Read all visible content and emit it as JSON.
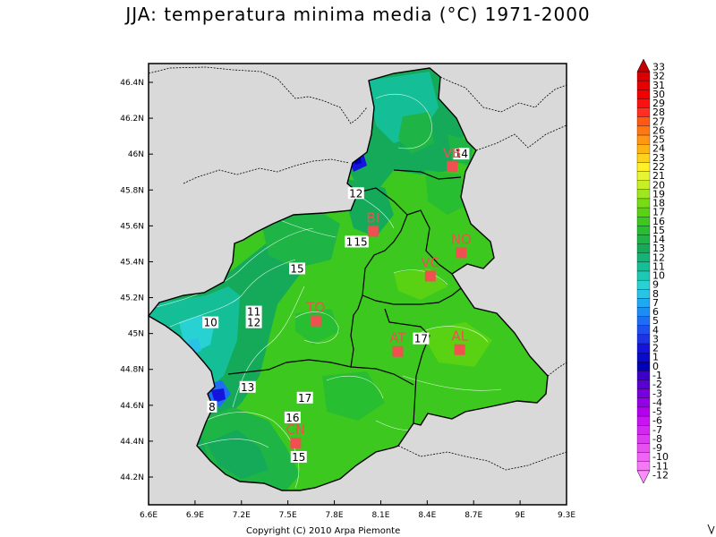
{
  "title": "JJA: temperatura minima media (°C) 1971-2000",
  "copyright": "Copyright (C) 2010 Arpa Piemonte",
  "map": {
    "lon_ticks": [
      "6.6E",
      "6.9E",
      "7.2E",
      "7.5E",
      "7.8E",
      "8.1E",
      "8.4E",
      "8.7E",
      "9E",
      "9.3E"
    ],
    "lat_ticks": [
      "46.4N",
      "46.2N",
      "46N",
      "45.8N",
      "45.6N",
      "45.4N",
      "45.2N",
      "45N",
      "44.8N",
      "44.6N",
      "44.4N",
      "44.2N"
    ],
    "cities": [
      {
        "code": "VB",
        "lon": 8.56,
        "lat": 45.93
      },
      {
        "code": "BI",
        "lon": 8.05,
        "lat": 45.57
      },
      {
        "code": "NO",
        "lon": 8.62,
        "lat": 45.45
      },
      {
        "code": "VC",
        "lon": 8.42,
        "lat": 45.32
      },
      {
        "code": "TO",
        "lon": 7.68,
        "lat": 45.07
      },
      {
        "code": "AT",
        "lon": 8.21,
        "lat": 44.9
      },
      {
        "code": "AL",
        "lon": 8.61,
        "lat": 44.91
      },
      {
        "code": "CN",
        "lon": 7.55,
        "lat": 44.39
      }
    ],
    "contour_labels": [
      {
        "text": "14",
        "lon": 8.62,
        "lat": 46.0
      },
      {
        "text": "12",
        "lon": 7.94,
        "lat": 45.78
      },
      {
        "text": "14",
        "lon": 7.92,
        "lat": 45.51
      },
      {
        "text": "15",
        "lon": 7.97,
        "lat": 45.51
      },
      {
        "text": "15",
        "lon": 7.56,
        "lat": 45.36
      },
      {
        "text": "10",
        "lon": 7.0,
        "lat": 45.06
      },
      {
        "text": "11",
        "lon": 7.28,
        "lat": 45.12
      },
      {
        "text": "12",
        "lon": 7.28,
        "lat": 45.06
      },
      {
        "text": "17",
        "lon": 8.36,
        "lat": 44.97
      },
      {
        "text": "13",
        "lon": 7.24,
        "lat": 44.7
      },
      {
        "text": "8",
        "lon": 7.01,
        "lat": 44.59
      },
      {
        "text": "17",
        "lon": 7.61,
        "lat": 44.64
      },
      {
        "text": "16",
        "lon": 7.53,
        "lat": 44.53
      },
      {
        "text": "15",
        "lon": 7.57,
        "lat": 44.31
      }
    ]
  },
  "colorbar": {
    "labels": [
      "33",
      "32",
      "31",
      "30",
      "29",
      "28",
      "27",
      "26",
      "25",
      "24",
      "23",
      "22",
      "21",
      "20",
      "19",
      "18",
      "17",
      "16",
      "15",
      "14",
      "13",
      "12",
      "11",
      "10",
      "9",
      "8",
      "7",
      "6",
      "5",
      "4",
      "3",
      "2",
      "1",
      "0",
      "-1",
      "-2",
      "-3",
      "-4",
      "-5",
      "-6",
      "-7",
      "-8",
      "-9",
      "-10",
      "-11",
      "-12"
    ],
    "colors": {
      "33": "#c00000",
      "32": "#d80000",
      "31": "#e60000",
      "30": "#f50000",
      "29": "#ff1010",
      "28": "#ff3020",
      "27": "#ff5a14",
      "26": "#ff7814",
      "25": "#ff9614",
      "24": "#ffb414",
      "23": "#ffd21e",
      "22": "#fff028",
      "21": "#e6f532",
      "20": "#c8ee28",
      "19": "#a0e61e",
      "18": "#78dc14",
      "17": "#5ad214",
      "16": "#3cc81e",
      "15": "#28be32",
      "14": "#1eb446",
      "13": "#14aa5a",
      "12": "#14b478",
      "11": "#14be96",
      "10": "#1ec8b4",
      "9": "#28d2d2",
      "8": "#28c3e6",
      "7": "#1eaaf0",
      "6": "#1e8cf5",
      "5": "#1e6ef5",
      "4": "#1e50f0",
      "3": "#1e32e6",
      "2": "#1414dc",
      "1": "#0a0acd",
      "0": "#0000b4",
      "-1": "#3c00c8",
      "-2": "#5a00d2",
      "-3": "#7800dc",
      "-4": "#9600e6",
      "-5": "#b400f0",
      "-6": "#c814f0",
      "-7": "#d228f0",
      "-8": "#dc3cf0",
      "-9": "#e650f0",
      "-10": "#f064f5",
      "-11": "#f578f5",
      "-12": "#ff8cff"
    }
  }
}
